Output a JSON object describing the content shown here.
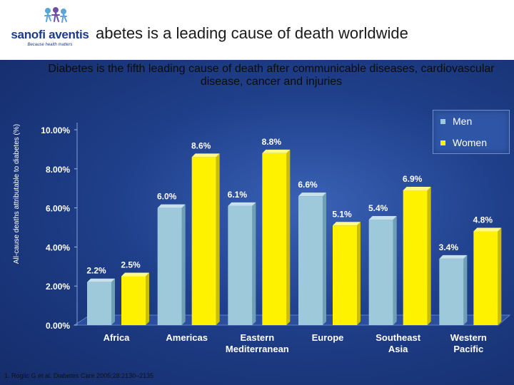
{
  "header": {
    "logo_text": "sanofi aventis",
    "logo_tagline": "Because health matters",
    "title": "abetes is a leading cause of death worldwide"
  },
  "subtitle": "Diabetes is the fifth leading cause of death after communicable diseases, cardiovascular disease, cancer and injuries",
  "footnote": "1. Roglic G et al. Diabetes Care 2005;28:2130–2135",
  "colors": {
    "men": "#9ec9da",
    "women": "#fff200",
    "background": "#1f3f8a"
  },
  "chart_data": {
    "type": "bar",
    "title": "Diabetes is the fifth leading cause of death after communicable diseases, cardiovascular disease, cancer and injuries",
    "ylabel": "All-cause deaths attributable to diabetes (%)",
    "ylim": [
      0,
      10
    ],
    "yticks": [
      "0.00%",
      "2.00%",
      "4.00%",
      "6.00%",
      "8.00%",
      "10.00%"
    ],
    "categories": [
      [
        "Africa"
      ],
      [
        "Americas"
      ],
      [
        "Eastern",
        "Mediterranean"
      ],
      [
        "Europe"
      ],
      [
        "Southeast",
        "Asia"
      ],
      [
        "Western",
        "Pacific"
      ]
    ],
    "series": [
      {
        "name": "Men",
        "values": [
          2.2,
          6.0,
          6.1,
          6.6,
          5.4,
          3.4
        ],
        "labels": [
          "2.2%",
          "6.0%",
          "6.1%",
          "6.6%",
          "5.4%",
          "3.4%"
        ]
      },
      {
        "name": "Women",
        "values": [
          2.5,
          8.6,
          8.8,
          5.1,
          6.9,
          4.8
        ],
        "labels": [
          "2.5%",
          "8.6%",
          "8.8%",
          "5.1%",
          "6.9%",
          "4.8%"
        ]
      }
    ],
    "legend": "top-right",
    "grid": false
  }
}
